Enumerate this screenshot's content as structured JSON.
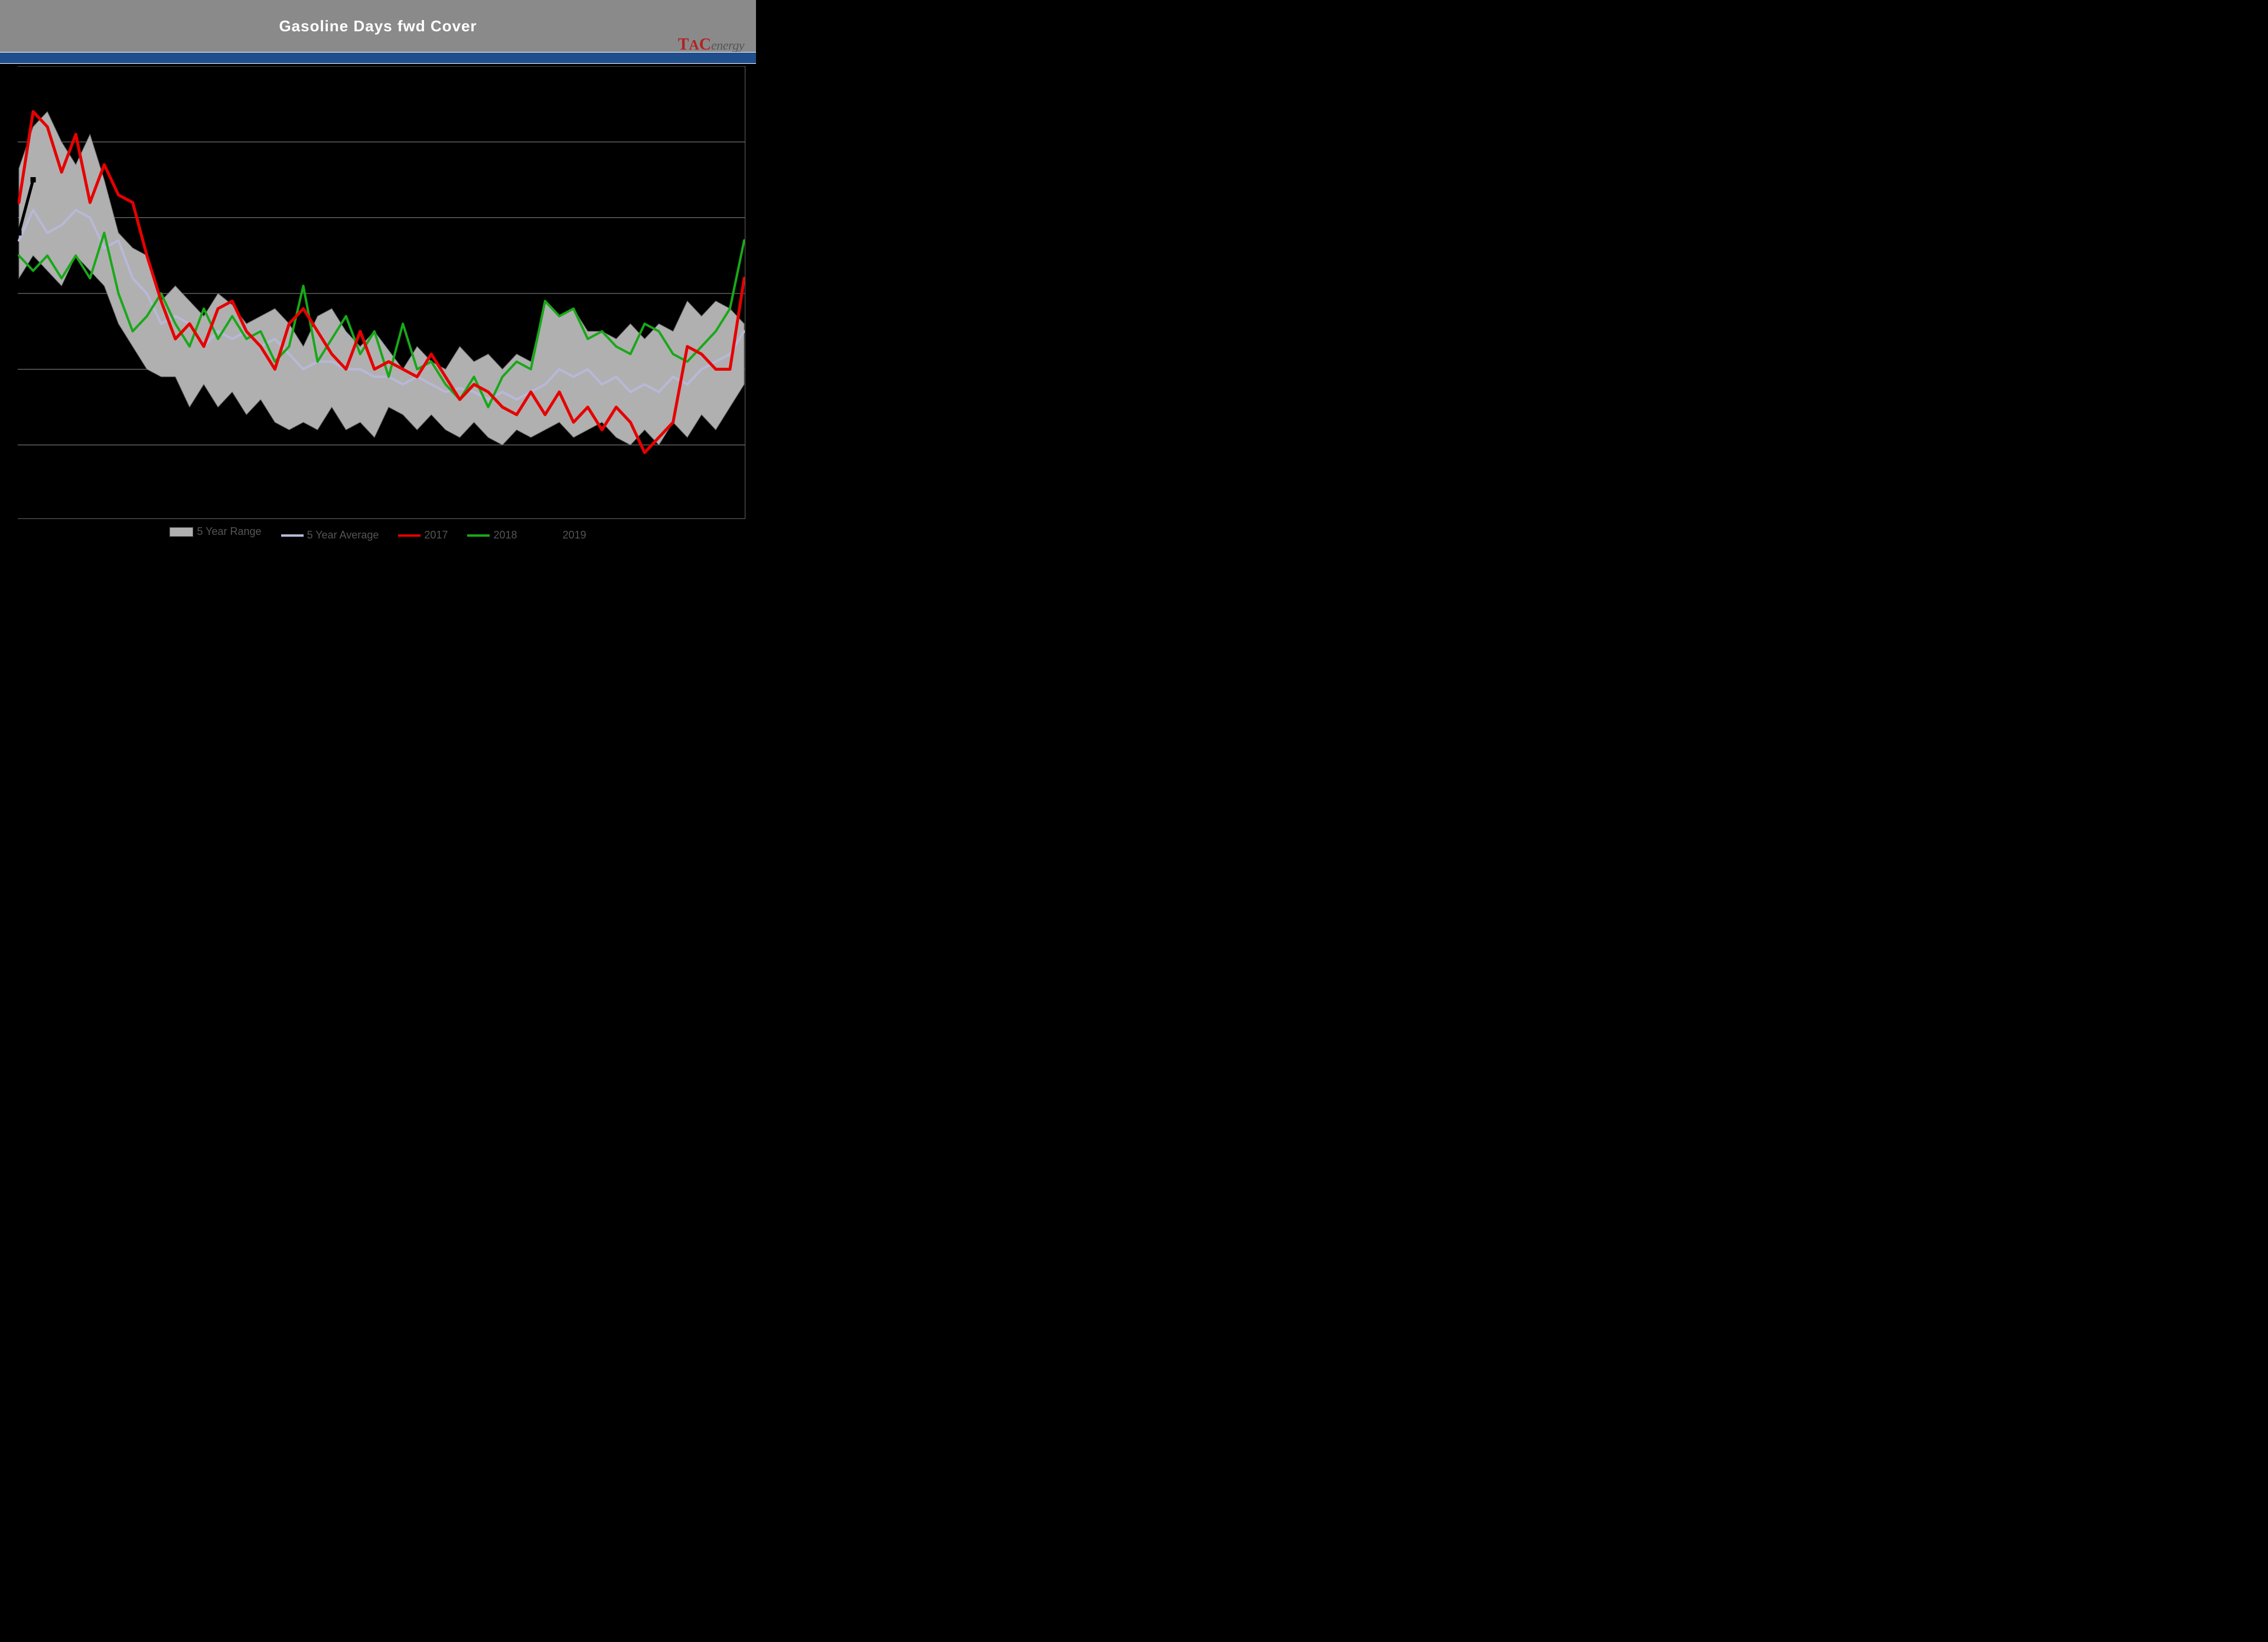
{
  "chart": {
    "type": "line-with-range-band",
    "title": "Gasoline Days fwd Cover",
    "title_fontsize": 26,
    "title_color": "#ffffff",
    "header_bg": "#8a8a8a",
    "accent_bar_color": "#1f4e8c",
    "background_color": "#000000",
    "plot_bg": "transparent",
    "grid_color": "#8a8a8a",
    "axis_color": "#666666",
    "logo": {
      "tac_color": "#b22222",
      "energy_color": "#555555",
      "text_tac": "TAC",
      "text_energy": "energy"
    },
    "ylim": [
      20,
      32
    ],
    "y_gridlines": [
      22,
      24,
      26,
      28,
      30,
      32
    ],
    "x_count": 52,
    "legend": {
      "position": "bottom",
      "fontsize": 18,
      "text_color": "#555555",
      "items": [
        {
          "key": "range",
          "label": "5 Year Range",
          "type": "band",
          "fill": "#b0b0b0",
          "stroke": "#666666"
        },
        {
          "key": "avg",
          "label": "5 Year Average",
          "type": "line",
          "color": "#b8b8d8",
          "width": 4
        },
        {
          "key": "y2017",
          "label": "2017",
          "type": "line",
          "color": "#e60000",
          "width": 5
        },
        {
          "key": "y2018",
          "label": "2018",
          "type": "line",
          "color": "#18a818",
          "width": 4
        },
        {
          "key": "y2019",
          "label": "2019",
          "type": "line-marker",
          "color": "#000000",
          "width": 5,
          "marker": "square"
        }
      ]
    },
    "series": {
      "range_upper": [
        29.3,
        30.4,
        30.8,
        30.0,
        29.4,
        30.2,
        29.0,
        27.6,
        27.2,
        27.0,
        25.8,
        26.2,
        25.8,
        25.4,
        26.0,
        25.7,
        25.2,
        25.4,
        25.6,
        25.2,
        24.6,
        25.4,
        25.6,
        25.0,
        24.6,
        25.0,
        24.5,
        24.0,
        24.6,
        24.2,
        24.0,
        24.6,
        24.2,
        24.4,
        24.0,
        24.4,
        24.2,
        25.8,
        25.4,
        25.6,
        25.0,
        25.0,
        24.8,
        25.2,
        24.8,
        25.2,
        25.0,
        25.8,
        25.4,
        25.8,
        25.6,
        25.2
      ],
      "range_lower": [
        26.4,
        27.0,
        26.6,
        26.2,
        27.0,
        26.6,
        26.2,
        25.2,
        24.6,
        24.0,
        23.8,
        23.8,
        23.0,
        23.6,
        23.0,
        23.4,
        22.8,
        23.2,
        22.6,
        22.4,
        22.6,
        22.4,
        23.0,
        22.4,
        22.6,
        22.2,
        23.0,
        22.8,
        22.4,
        22.8,
        22.4,
        22.2,
        22.6,
        22.2,
        22.0,
        22.4,
        22.2,
        22.4,
        22.6,
        22.2,
        22.4,
        22.6,
        22.2,
        22.0,
        22.4,
        22.0,
        22.6,
        22.2,
        22.8,
        22.4,
        23.0,
        23.6
      ],
      "avg": [
        27.4,
        28.2,
        27.6,
        27.8,
        28.2,
        28.0,
        27.2,
        27.4,
        26.4,
        26.0,
        25.2,
        25.4,
        25.2,
        24.6,
        25.0,
        24.8,
        25.0,
        24.6,
        24.8,
        24.4,
        24.0,
        24.2,
        24.2,
        24.0,
        24.0,
        23.8,
        23.8,
        23.6,
        23.8,
        23.6,
        23.4,
        23.5,
        23.4,
        23.2,
        23.4,
        23.2,
        23.4,
        23.6,
        24.0,
        23.8,
        24.0,
        23.6,
        23.8,
        23.4,
        23.6,
        23.4,
        23.8,
        23.6,
        24.0,
        24.2,
        24.4,
        25.0
      ],
      "y2017": [
        28.4,
        30.8,
        30.4,
        29.2,
        30.2,
        28.4,
        29.4,
        28.6,
        28.4,
        27.0,
        25.8,
        24.8,
        25.2,
        24.6,
        25.6,
        25.8,
        25.0,
        24.6,
        24.0,
        25.2,
        25.6,
        25.0,
        24.4,
        24.0,
        25.0,
        24.0,
        24.2,
        24.0,
        23.8,
        24.4,
        23.8,
        23.2,
        23.6,
        23.4,
        23.0,
        22.8,
        23.4,
        22.8,
        23.4,
        22.6,
        23.0,
        22.4,
        23.0,
        22.6,
        21.8,
        22.2,
        22.6,
        24.6,
        24.4,
        24.0,
        24.0,
        26.4
      ],
      "y2018": [
        27.0,
        26.6,
        27.0,
        26.4,
        27.0,
        26.4,
        27.6,
        26.0,
        25.0,
        25.4,
        26.0,
        25.2,
        24.6,
        25.6,
        24.8,
        25.4,
        24.8,
        25.0,
        24.2,
        24.6,
        26.2,
        24.2,
        24.8,
        25.4,
        24.4,
        25.0,
        23.8,
        25.2,
        24.0,
        24.2,
        23.6,
        23.2,
        23.8,
        23.0,
        23.8,
        24.2,
        24.0,
        25.8,
        25.4,
        25.6,
        24.8,
        25.0,
        24.6,
        24.4,
        25.2,
        25.0,
        24.4,
        24.2,
        24.6,
        25.0,
        25.6,
        27.4
      ],
      "y2019": [
        27.6,
        29.0
      ]
    },
    "line_styles": {
      "avg": {
        "color": "#b8b8d8",
        "width": 4
      },
      "y2017": {
        "color": "#e60000",
        "width": 5
      },
      "y2018": {
        "color": "#18a818",
        "width": 4
      },
      "y2019": {
        "color": "#000000",
        "width": 5,
        "marker": "square",
        "marker_size": 9
      }
    },
    "band_style": {
      "fill": "#b0b0b0",
      "stroke": "#666666",
      "stroke_width": 1
    }
  }
}
